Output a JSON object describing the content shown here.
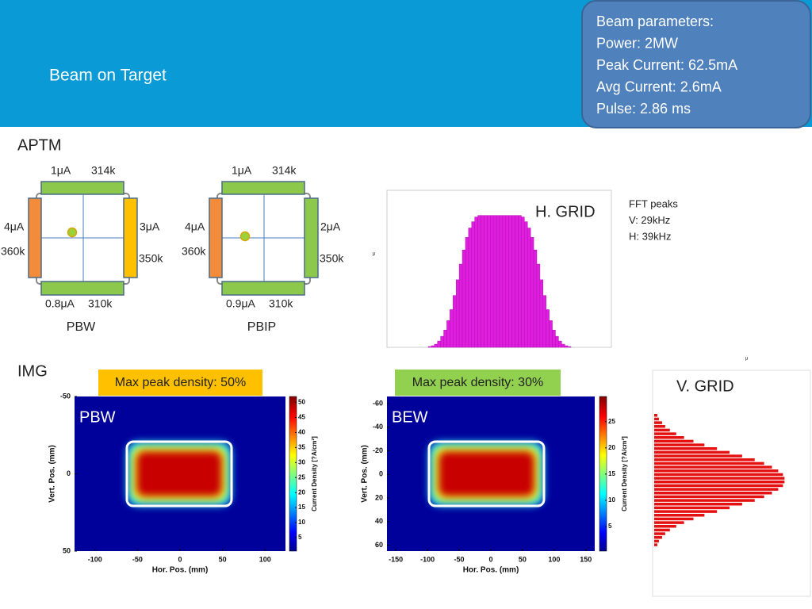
{
  "header": {
    "title": "Beam on Target"
  },
  "params": [
    "Beam parameters:",
    "Power: 2MW",
    "Peak Current: 62.5mA",
    "Avg Current: 2.6mA",
    "Pulse: 2.86 ms"
  ],
  "aptm": {
    "label": "APTM",
    "monitors": [
      {
        "name": "PBW",
        "top": [
          "1μA",
          "314k"
        ],
        "left": [
          "4μA",
          "360k"
        ],
        "right": [
          "3μA",
          "350k"
        ],
        "bottom": [
          "0.8μA",
          "310k"
        ]
      },
      {
        "name": "PBIP",
        "top": [
          "1μA",
          "314k"
        ],
        "left": [
          "4μA",
          "360k"
        ],
        "right": [
          "2μA",
          "350k"
        ],
        "bottom": [
          "0.9μA",
          "310k"
        ]
      }
    ]
  },
  "hgrid": {
    "label": "H. GRID",
    "axis_label": "μ",
    "ylim": [
      0,
      100
    ],
    "values": [
      0.5,
      1,
      2,
      4,
      7,
      11,
      17,
      24,
      33,
      43,
      53,
      62,
      70,
      76,
      80,
      83,
      84,
      84,
      84,
      84,
      84,
      84,
      84,
      84,
      84,
      84,
      84,
      84,
      84,
      84,
      83,
      80,
      76,
      70,
      62,
      53,
      43,
      33,
      24,
      17,
      11,
      7,
      4,
      2,
      1,
      0.5
    ]
  },
  "fft": [
    "FFT peaks",
    "V: 29kHz",
    "H: 39kHz"
  ],
  "img": {
    "label": "IMG"
  },
  "heatmaps": [
    {
      "badge": "Max peak density: 50%",
      "label": "PBW",
      "x_label": "Hor. Pos. (mm)",
      "y_label": "Vert. Pos. (mm)",
      "cbar_label": "Current Density [?A/cm²]",
      "xlim": [
        -124,
        124
      ],
      "xticks": [
        -100,
        -50,
        0,
        50,
        100
      ],
      "ylim": [
        -50,
        50
      ],
      "yticks": [
        -50,
        0,
        50
      ],
      "clim": [
        0.5,
        52
      ],
      "cticks": [
        5,
        10,
        15,
        20,
        25,
        30,
        35,
        40,
        45,
        50
      ]
    },
    {
      "badge": "Max peak density: 30%",
      "label": "BEW",
      "x_label": "Hor. Pos. (mm)",
      "y_label": "Vert. Pos. (mm)",
      "cbar_label": "Current Density [?A/cm²]",
      "xlim": [
        -164,
        164
      ],
      "xticks": [
        -150,
        -100,
        -50,
        0,
        50,
        100,
        150
      ],
      "ylim": [
        -66,
        65
      ],
      "yticks": [
        -60,
        -40,
        -20,
        0,
        20,
        40,
        60
      ],
      "clim": [
        0.3,
        29.8
      ],
      "cticks": [
        5,
        10,
        15,
        20,
        25
      ]
    }
  ],
  "vgrid": {
    "label": "V. GRID",
    "axis_label": "μ",
    "xlim": [
      0,
      100
    ],
    "values": [
      2,
      3,
      5,
      7,
      10,
      14,
      19,
      25,
      32,
      40,
      48,
      56,
      64,
      70,
      75,
      79,
      82,
      83,
      83,
      82,
      79,
      75,
      70,
      64,
      56,
      48,
      40,
      32,
      25,
      19,
      14,
      10,
      7,
      5,
      3,
      2
    ]
  }
}
